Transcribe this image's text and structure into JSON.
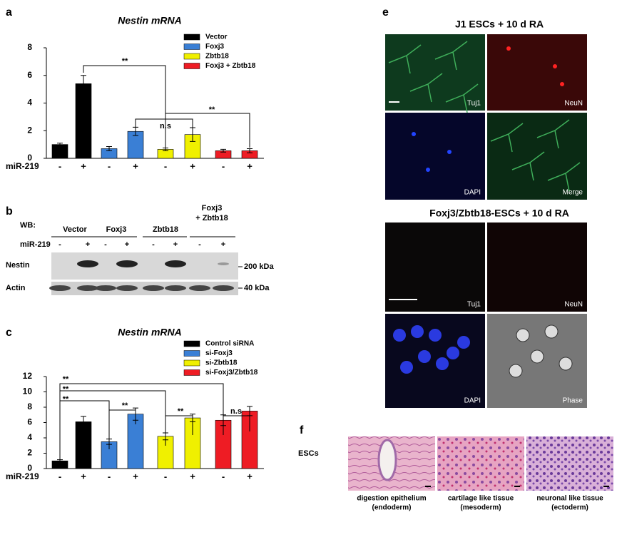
{
  "chart_data": [
    {
      "type": "bar",
      "title": "Nestin mRNA",
      "category_label": "miR-219",
      "categories": [
        "-",
        "+"
      ],
      "series": [
        {
          "name": "Vector",
          "color": "#000000",
          "values": [
            1.0,
            5.4
          ],
          "errors": [
            0.1,
            0.6
          ]
        },
        {
          "name": "Foxj3",
          "color": "#3a7fd5",
          "values": [
            0.7,
            1.95
          ],
          "errors": [
            0.15,
            0.3
          ]
        },
        {
          "name": "Zbtb18",
          "color": "#f0f000",
          "values": [
            0.65,
            1.72
          ],
          "errors": [
            0.1,
            0.5
          ]
        },
        {
          "name": "Foxj3 + Zbtb18",
          "color": "#ee1c24",
          "values": [
            0.55,
            0.55
          ],
          "errors": [
            0.1,
            0.15
          ]
        }
      ],
      "ylim": [
        0,
        8
      ],
      "yticks": [
        0,
        2,
        4,
        6,
        8
      ],
      "annotations": [
        "**",
        "n.s",
        "**"
      ]
    },
    {
      "type": "bar",
      "title": "Nestin mRNA",
      "category_label": "miR-219",
      "categories": [
        "-",
        "+"
      ],
      "series": [
        {
          "name": "Control siRNA",
          "color": "#000000",
          "values": [
            1.0,
            6.1
          ],
          "errors": [
            0.15,
            0.7
          ]
        },
        {
          "name": "si-Foxj3",
          "color": "#3a7fd5",
          "values": [
            3.5,
            7.1
          ],
          "errors": [
            0.35,
            0.8
          ]
        },
        {
          "name": "si-Zbtb18",
          "color": "#f0f000",
          "values": [
            4.2,
            6.6
          ],
          "errors": [
            0.45,
            0.5
          ]
        },
        {
          "name": "si-Foxj3/Zbtb18",
          "color": "#ee1c24",
          "values": [
            6.3,
            7.5
          ],
          "errors": [
            0.7,
            0.6
          ]
        }
      ],
      "ylim": [
        0,
        12
      ],
      "yticks": [
        0,
        2,
        4,
        6,
        8,
        10,
        12
      ],
      "annotations": [
        "**",
        "**",
        "**",
        "**",
        "**",
        "n.s"
      ]
    }
  ],
  "panel_labels": [
    "a",
    "b",
    "c",
    "e",
    "f"
  ],
  "blot": {
    "wb": "WB:",
    "groups": [
      "Vector",
      "Foxj3",
      "Zbtb18",
      "Foxj3",
      "+ Zbtb18"
    ],
    "treatment": "miR-219",
    "signs": [
      "-",
      "+"
    ],
    "rows": [
      "Nestin",
      "Actin"
    ],
    "sizes": [
      "200 kDa",
      "40 kDa"
    ]
  },
  "microscopy": {
    "titles": [
      "J1 ESCs + 10 d RA",
      "Foxj3/Zbtb18-ESCs + 10 d RA"
    ],
    "channels": [
      [
        "Tuj1",
        "NeuN",
        "DAPI",
        "Merge"
      ],
      [
        "Tuj1",
        "NeuN",
        "DAPI",
        "Phase"
      ]
    ]
  },
  "histology": {
    "row": "ESCs",
    "captions": [
      [
        "digestion epithelium",
        "(endoderm)"
      ],
      [
        "cartilage like tissue",
        "(mesoderm)"
      ],
      [
        "neuronal like tissue",
        "(ectoderm)"
      ]
    ]
  }
}
